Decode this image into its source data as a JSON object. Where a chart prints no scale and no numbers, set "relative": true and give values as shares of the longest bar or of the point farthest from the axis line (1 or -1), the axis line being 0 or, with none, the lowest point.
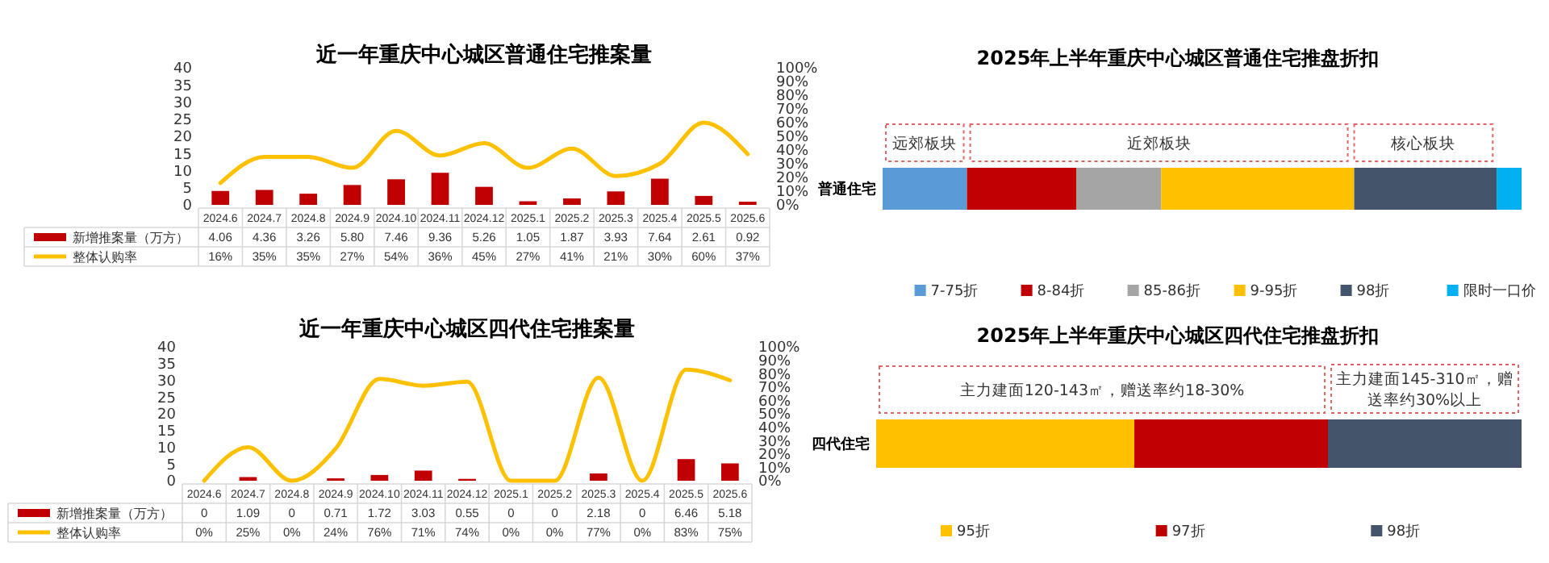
{
  "chart_data": [
    {
      "type": "bar",
      "title": "近一年重庆中心城区普通住宅推案量",
      "categories": [
        "2024.6",
        "2024.7",
        "2024.8",
        "2024.9",
        "2024.10",
        "2024.11",
        "2024.12",
        "2025.1",
        "2025.2",
        "2025.3",
        "2025.4",
        "2025.5",
        "2025.6"
      ],
      "series": [
        {
          "name": "新增推案量（万方）",
          "type": "bar",
          "color": "#c00000",
          "values": [
            4.06,
            4.36,
            3.26,
            5.8,
            7.46,
            9.36,
            5.26,
            1.05,
            1.87,
            3.93,
            7.64,
            2.61,
            0.92
          ],
          "value_labels": [
            "4.06",
            "4.36",
            "3.26",
            "5.80",
            "7.46",
            "9.36",
            "5.26",
            "1.05",
            "1.87",
            "3.93",
            "7.64",
            "2.61",
            "0.92"
          ]
        },
        {
          "name": "整体认购率",
          "type": "line",
          "axis": "y2",
          "color": "#ffc000",
          "values": [
            16,
            35,
            35,
            27,
            54,
            36,
            45,
            27,
            41,
            21,
            30,
            60,
            37
          ],
          "value_labels": [
            "16%",
            "35%",
            "35%",
            "27%",
            "54%",
            "36%",
            "45%",
            "27%",
            "41%",
            "21%",
            "30%",
            "60%",
            "37%"
          ]
        }
      ],
      "ylim": [
        0,
        40
      ],
      "yticks": [
        0,
        5,
        10,
        15,
        20,
        25,
        30,
        35,
        40
      ],
      "y2lim": [
        0,
        100
      ],
      "y2ticks": [
        {
          "value": 0,
          "label": "0%"
        },
        {
          "value": 10,
          "label": "10%"
        },
        {
          "value": 20,
          "label": "20%"
        },
        {
          "value": 30,
          "label": "30%"
        },
        {
          "value": 40,
          "label": "40%"
        },
        {
          "value": 50,
          "label": "50%"
        },
        {
          "value": 60,
          "label": "60%"
        },
        {
          "value": 70,
          "label": "70%"
        },
        {
          "value": 80,
          "label": "80%"
        },
        {
          "value": 90,
          "label": "90%"
        },
        {
          "value": 100,
          "label": "100%"
        }
      ],
      "legend": "bottom",
      "grid": false
    },
    {
      "type": "bar",
      "title": "近一年重庆中心城区四代住宅推案量",
      "categories": [
        "2024.6",
        "2024.7",
        "2024.8",
        "2024.9",
        "2024.10",
        "2024.11",
        "2024.12",
        "2025.1",
        "2025.2",
        "2025.3",
        "2025.4",
        "2025.5",
        "2025.6"
      ],
      "series": [
        {
          "name": "新增推案量（万方）",
          "type": "bar",
          "color": "#c00000",
          "values": [
            0,
            1.09,
            0,
            0.71,
            1.72,
            3.03,
            0.55,
            0,
            0,
            2.18,
            0,
            6.46,
            5.18
          ],
          "value_labels": [
            "0",
            "1.09",
            "0",
            "0.71",
            "1.72",
            "3.03",
            "0.55",
            "0",
            "0",
            "2.18",
            "0",
            "6.46",
            "5.18"
          ]
        },
        {
          "name": "整体认购率",
          "type": "line",
          "axis": "y2",
          "color": "#ffc000",
          "values": [
            0,
            25,
            0,
            24,
            76,
            71,
            74,
            0,
            0,
            77,
            0,
            83,
            75
          ],
          "value_labels": [
            "0%",
            "25%",
            "0%",
            "24%",
            "76%",
            "71%",
            "74%",
            "0%",
            "0%",
            "77%",
            "0%",
            "83%",
            "75%"
          ]
        }
      ],
      "ylim": [
        0,
        40
      ],
      "yticks": [
        0,
        5,
        10,
        15,
        20,
        25,
        30,
        35,
        40
      ],
      "y2lim": [
        0,
        100
      ],
      "y2ticks": [
        {
          "value": 0,
          "label": "0%"
        },
        {
          "value": 10,
          "label": "10%"
        },
        {
          "value": 20,
          "label": "20%"
        },
        {
          "value": 30,
          "label": "30%"
        },
        {
          "value": 40,
          "label": "40%"
        },
        {
          "value": 50,
          "label": "50%"
        },
        {
          "value": 60,
          "label": "60%"
        },
        {
          "value": 70,
          "label": "70%"
        },
        {
          "value": 80,
          "label": "80%"
        },
        {
          "value": 90,
          "label": "90%"
        },
        {
          "value": 100,
          "label": "100%"
        }
      ],
      "legend": "bottom",
      "grid": false
    },
    {
      "type": "bar",
      "orientation": "horizontal",
      "stacked": true,
      "relative": true,
      "title": "2025年上半年重庆中心城区普通住宅推盘折扣",
      "categories": [
        "普通住宅"
      ],
      "series": [
        {
          "name": "7-75折",
          "color": "#5b9bd5",
          "values": [
            0.132
          ]
        },
        {
          "name": "8-84折",
          "color": "#c00000",
          "values": [
            0.171
          ]
        },
        {
          "name": "85-86折",
          "color": "#a5a5a5",
          "values": [
            0.133
          ]
        },
        {
          "name": "9-95折",
          "color": "#ffc000",
          "values": [
            0.302
          ]
        },
        {
          "name": "98折",
          "color": "#44546a",
          "values": [
            0.223
          ]
        },
        {
          "name": "限时一口价",
          "color": "#00b0f0",
          "values": [
            0.039
          ]
        }
      ],
      "annotations": [
        "远郊板块",
        "近郊板块",
        "核心板块"
      ],
      "legend": "bottom"
    },
    {
      "type": "bar",
      "orientation": "horizontal",
      "stacked": true,
      "relative": true,
      "title": "2025年上半年重庆中心城区四代住宅推盘折扣",
      "categories": [
        "四代住宅"
      ],
      "series": [
        {
          "name": "95折",
          "color": "#ffc000",
          "values": [
            0.4
          ]
        },
        {
          "name": "97折",
          "color": "#c00000",
          "values": [
            0.3
          ]
        },
        {
          "name": "98折",
          "color": "#44546a",
          "values": [
            0.3
          ]
        }
      ],
      "annotations": [
        "主力建面120-143㎡，赠送率约18-30%",
        "主力建面145-310㎡，赠送率约30%以上"
      ],
      "legend": "bottom"
    }
  ]
}
